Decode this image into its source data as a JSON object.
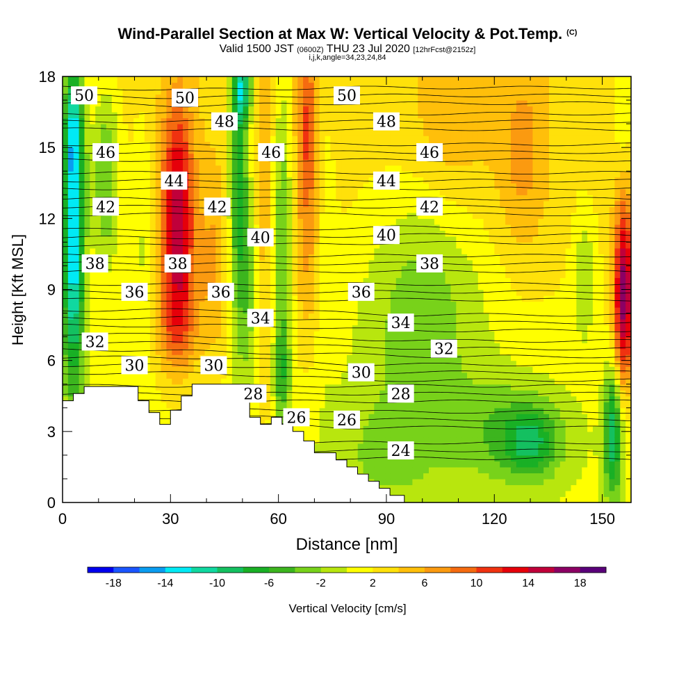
{
  "header": {
    "title": "Wind-Parallel Section at Max W: Vertical Velocity & Pot.Temp.",
    "copyright": "(C)",
    "valid_prefix": "Valid 1500 JST",
    "valid_utc": "(0600Z)",
    "valid_date": "THU 23 Jul 2020",
    "forecast": "[12hrFcst@2152z]",
    "indices": "i,j,k,angle=34,23,24,84"
  },
  "chart_data": {
    "type": "heatmap",
    "xlabel": "Distance [nm]",
    "ylabel": "Height [Kft MSL]",
    "xlim": [
      0,
      158
    ],
    "ylim": [
      0,
      18
    ],
    "xticks": [
      "0",
      "30",
      "60",
      "90",
      "120",
      "150"
    ],
    "yticks": [
      "0",
      "3",
      "6",
      "9",
      "12",
      "15",
      "18"
    ],
    "colorbar": {
      "label": "Vertical Velocity [cm/s]",
      "bounds": [
        -20,
        -18,
        -16,
        -14,
        -12,
        -10,
        -8,
        -6,
        -4,
        -2,
        0,
        2,
        4,
        6,
        8,
        10,
        12,
        14,
        16,
        18,
        20
      ],
      "tick_labels": [
        "-18",
        "-14",
        "-10",
        "-6",
        "-2",
        "2",
        "6",
        "10",
        "14",
        "18"
      ],
      "colors": [
        "#0000ee",
        "#1a55ff",
        "#0a9cf0",
        "#00eaf5",
        "#10d8a0",
        "#14c060",
        "#19b025",
        "#3cb51e",
        "#78d21a",
        "#b8e60e",
        "#ffff00",
        "#ffe10a",
        "#ffbf0a",
        "#fb9a10",
        "#f56b10",
        "#f03210",
        "#e6000a",
        "#c0003a",
        "#8c0064",
        "#5a007a"
      ]
    },
    "terrain_kft": [
      [
        0,
        4.3
      ],
      [
        3,
        4.3
      ],
      [
        3,
        4.6
      ],
      [
        6,
        4.6
      ],
      [
        6,
        4.9
      ],
      [
        21,
        4.9
      ],
      [
        21,
        4.3
      ],
      [
        24,
        4.3
      ],
      [
        24,
        3.8
      ],
      [
        27,
        3.8
      ],
      [
        27,
        3.3
      ],
      [
        30,
        3.3
      ],
      [
        30,
        3.9
      ],
      [
        33,
        3.9
      ],
      [
        33,
        4.5
      ],
      [
        36,
        4.5
      ],
      [
        36,
        5.0
      ],
      [
        52,
        5.0
      ],
      [
        52,
        3.6
      ],
      [
        55,
        3.6
      ],
      [
        55,
        3.3
      ],
      [
        58,
        3.3
      ],
      [
        58,
        3.6
      ],
      [
        61,
        3.6
      ],
      [
        61,
        3.3
      ],
      [
        64,
        3.3
      ],
      [
        64,
        3.0
      ],
      [
        67,
        3.0
      ],
      [
        67,
        2.6
      ],
      [
        70,
        2.6
      ],
      [
        70,
        2.1
      ],
      [
        76,
        2.1
      ],
      [
        76,
        1.8
      ],
      [
        79,
        1.8
      ],
      [
        79,
        1.5
      ],
      [
        82,
        1.5
      ],
      [
        82,
        1.2
      ],
      [
        85,
        1.2
      ],
      [
        85,
        0.9
      ],
      [
        88,
        0.9
      ],
      [
        88,
        0.6
      ],
      [
        91,
        0.6
      ],
      [
        91,
        0.3
      ],
      [
        95,
        0.3
      ],
      [
        95,
        0.0
      ],
      [
        158,
        0.0
      ]
    ],
    "updrafts": [
      {
        "x": 3,
        "y": 11.0,
        "sx": 2.2,
        "sy": 4.5,
        "w": -16
      },
      {
        "x": 3,
        "y": 16.0,
        "sx": 2.0,
        "sy": 2.0,
        "w": -8
      },
      {
        "x": 12,
        "y": 15.0,
        "sx": 3.0,
        "sy": 2.5,
        "w": -5
      },
      {
        "x": 12,
        "y": 12.0,
        "sx": 2.5,
        "sy": 2.0,
        "w": -3
      },
      {
        "x": 22,
        "y": 11.5,
        "sx": 2.0,
        "sy": 4.0,
        "w": -2.5
      },
      {
        "x": 32,
        "y": 11.0,
        "sx": 3.5,
        "sy": 3.0,
        "w": 11
      },
      {
        "x": 32,
        "y": 14.5,
        "sx": 3.0,
        "sy": 2.5,
        "w": 5
      },
      {
        "x": 32,
        "y": 7.5,
        "sx": 4.0,
        "sy": 1.5,
        "w": 5
      },
      {
        "x": 42,
        "y": 10.0,
        "sx": 3.0,
        "sy": 3.0,
        "w": 4
      },
      {
        "x": 49,
        "y": 13.5,
        "sx": 2.0,
        "sy": 4.5,
        "w": -9
      },
      {
        "x": 50,
        "y": 17.5,
        "sx": 2.0,
        "sy": 1.0,
        "w": -10
      },
      {
        "x": 52,
        "y": 9.0,
        "sx": 2.0,
        "sy": 3.0,
        "w": -4
      },
      {
        "x": 56,
        "y": 11.0,
        "sx": 2.0,
        "sy": 6.0,
        "w": 3
      },
      {
        "x": 61,
        "y": 11.5,
        "sx": 2.0,
        "sy": 5.0,
        "w": -6
      },
      {
        "x": 61,
        "y": 5.5,
        "sx": 1.5,
        "sy": 1.5,
        "w": -5
      },
      {
        "x": 68,
        "y": 16.0,
        "sx": 2.0,
        "sy": 2.5,
        "w": 7
      },
      {
        "x": 68,
        "y": 10.5,
        "sx": 2.5,
        "sy": 3.0,
        "w": 4
      },
      {
        "x": 73,
        "y": 12.0,
        "sx": 2.0,
        "sy": 5.0,
        "w": -1.5
      },
      {
        "x": 100,
        "y": 7.0,
        "sx": 14.0,
        "sy": 3.0,
        "w": -3.5
      },
      {
        "x": 100,
        "y": 10.5,
        "sx": 10.0,
        "sy": 3.0,
        "w": -2.5
      },
      {
        "x": 125,
        "y": 3.0,
        "sx": 12.0,
        "sy": 1.6,
        "w": -5
      },
      {
        "x": 130,
        "y": 2.5,
        "sx": 5.0,
        "sy": 1.0,
        "w": -6
      },
      {
        "x": 90,
        "y": 2.0,
        "sx": 12.0,
        "sy": 2.0,
        "w": -3
      },
      {
        "x": 128,
        "y": 14.5,
        "sx": 5.0,
        "sy": 3.0,
        "w": 4
      },
      {
        "x": 108,
        "y": 15.5,
        "sx": 8.0,
        "sy": 2.5,
        "w": 2.5
      },
      {
        "x": 145,
        "y": 9.5,
        "sx": 2.0,
        "sy": 2.0,
        "w": -4
      },
      {
        "x": 153,
        "y": 3.0,
        "sx": 1.8,
        "sy": 2.0,
        "w": -11
      },
      {
        "x": 156,
        "y": 8.5,
        "sx": 2.0,
        "sy": 3.0,
        "w": 16
      },
      {
        "x": 157,
        "y": 5.0,
        "sx": 2.0,
        "sy": 2.0,
        "w": -2
      },
      {
        "x": 156,
        "y": 16.5,
        "sx": 2.0,
        "sy": 2.0,
        "w": -3
      }
    ],
    "theta_contours": [
      {
        "label": "50",
        "at": [
          [
            6,
            17.2
          ],
          [
            34,
            17.1
          ],
          [
            79,
            17.2
          ]
        ]
      },
      {
        "label": "48",
        "at": [
          [
            45,
            16.1
          ],
          [
            90,
            16.1
          ]
        ]
      },
      {
        "label": "46",
        "at": [
          [
            12,
            14.8
          ],
          [
            58,
            14.8
          ],
          [
            102,
            14.8
          ]
        ]
      },
      {
        "label": "44",
        "at": [
          [
            31,
            13.6
          ],
          [
            90,
            13.6
          ]
        ]
      },
      {
        "label": "42",
        "at": [
          [
            12,
            12.5
          ],
          [
            43,
            12.5
          ],
          [
            102,
            12.5
          ]
        ]
      },
      {
        "label": "40",
        "at": [
          [
            55,
            11.2
          ],
          [
            90,
            11.3
          ]
        ]
      },
      {
        "label": "38",
        "at": [
          [
            9,
            10.1
          ],
          [
            32,
            10.1
          ],
          [
            102,
            10.1
          ]
        ]
      },
      {
        "label": "36",
        "at": [
          [
            20,
            8.9
          ],
          [
            44,
            8.9
          ],
          [
            83,
            8.9
          ]
        ]
      },
      {
        "label": "34",
        "at": [
          [
            55,
            7.8
          ],
          [
            94,
            7.6
          ]
        ]
      },
      {
        "label": "32",
        "at": [
          [
            9,
            6.8
          ],
          [
            106,
            6.5
          ]
        ]
      },
      {
        "label": "30",
        "at": [
          [
            20,
            5.8
          ],
          [
            42,
            5.8
          ],
          [
            83,
            5.5
          ]
        ]
      },
      {
        "label": "28",
        "at": [
          [
            53,
            4.6
          ],
          [
            94,
            4.6
          ]
        ]
      },
      {
        "label": "26",
        "at": [
          [
            65,
            3.6
          ],
          [
            79,
            3.5
          ]
        ]
      },
      {
        "label": "24",
        "at": [
          [
            94,
            2.2
          ]
        ]
      }
    ]
  }
}
